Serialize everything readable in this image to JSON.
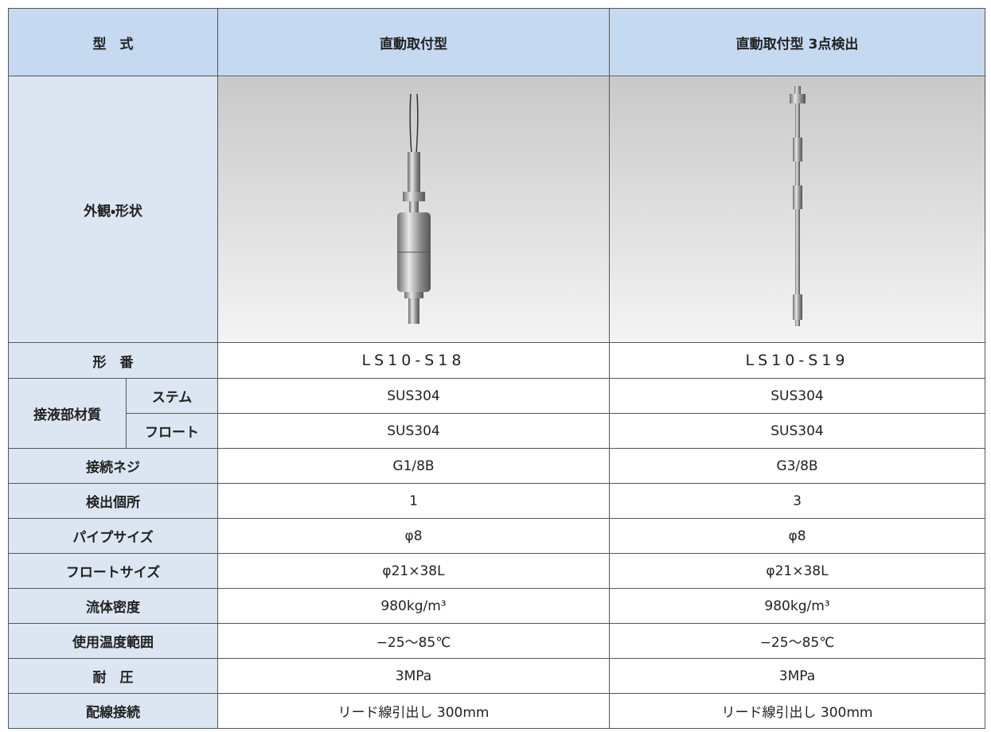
{
  "table": {
    "header": [
      "型　式",
      "直動取付型",
      "直動取付型 3点検出"
    ],
    "appearance_label": "外観・形状",
    "model": {
      "label": "形　番",
      "cells": [
        "LS10-S18",
        "LS10-S19"
      ]
    },
    "material": {
      "label": "接液部材質",
      "items": [
        {
          "label": "ステム",
          "cells": [
            "SUS304",
            "SUS304"
          ]
        },
        {
          "label": "フロート",
          "cells": [
            "SUS304",
            "SUS304"
          ]
        }
      ]
    },
    "rows": [
      {
        "label": "接続ネジ",
        "cells": [
          "G1/8B",
          "G3/8B"
        ]
      },
      {
        "label": "検出個所",
        "cells": [
          "1",
          "3"
        ]
      },
      {
        "label": "パイプサイズ",
        "cells": [
          "φ8",
          "φ8"
        ]
      },
      {
        "label": "フロートサイズ",
        "cells": [
          "φ21×38L",
          "φ21×38L"
        ]
      },
      {
        "label": "流体密度",
        "cells": [
          "980kg/m³",
          "980kg/m³"
        ]
      },
      {
        "label": "使用温度範囲",
        "cells": [
          "−25〜85℃",
          "−25〜85℃"
        ]
      },
      {
        "label": "耐　圧",
        "cells": [
          "3MPa",
          "3MPa"
        ]
      },
      {
        "label": "配線接続",
        "cells": [
          "リード線引出し 300mm",
          "リード線引出し 300mm"
        ]
      }
    ]
  }
}
